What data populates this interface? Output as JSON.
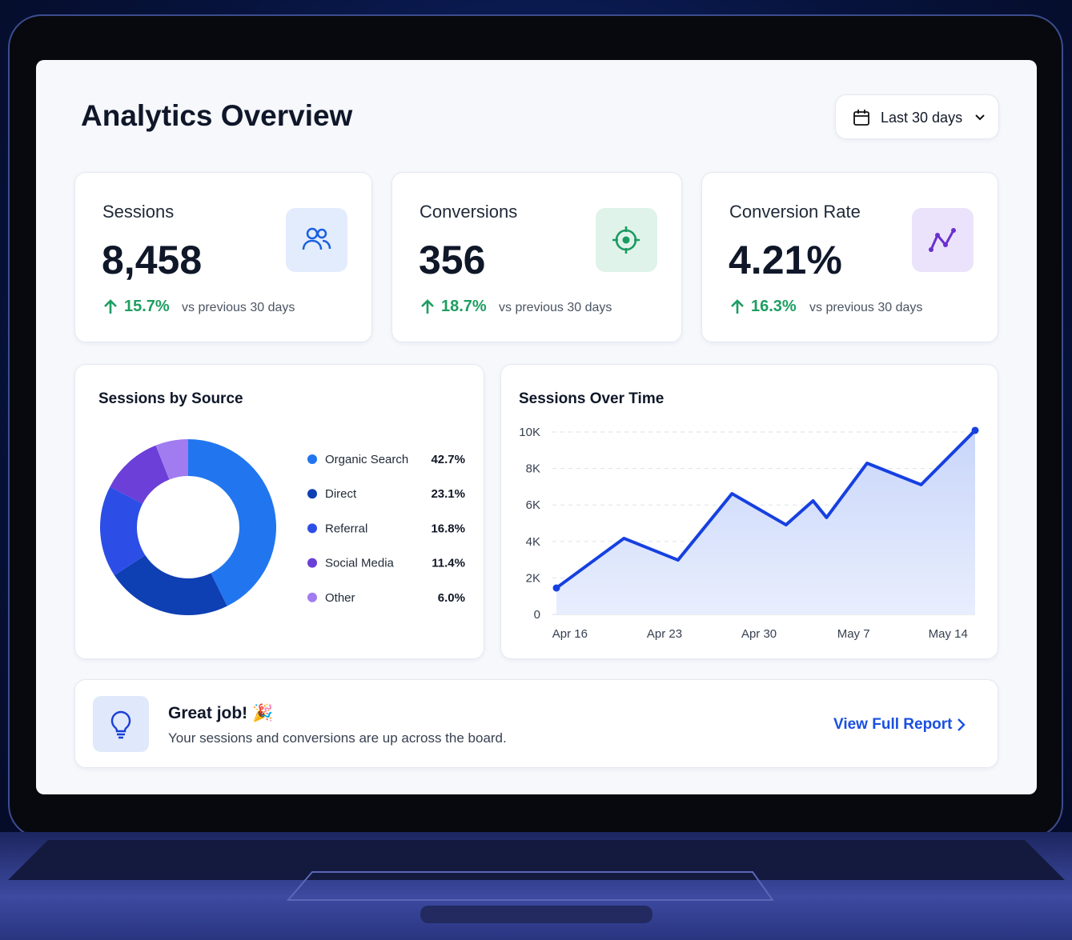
{
  "header": {
    "title": "Analytics Overview",
    "date_range": "Last 30 days"
  },
  "kpis": [
    {
      "label": "Sessions",
      "value": "8,458",
      "change": "15.7%",
      "note": "vs previous 30 days"
    },
    {
      "label": "Conversions",
      "value": "356",
      "change": "18.7%",
      "note": "vs previous 30 days"
    },
    {
      "label": "Conversion Rate",
      "value": "4.21%",
      "change": "16.3%",
      "note": "vs previous 30 days"
    }
  ],
  "chart_data": [
    {
      "type": "donut",
      "title": "Sessions by Source",
      "categories": [
        "Organic Search",
        "Direct",
        "Referral",
        "Social Media",
        "Other"
      ],
      "values": [
        42.7,
        23.1,
        16.8,
        11.4,
        6.0
      ],
      "value_labels": [
        "42.7%",
        "23.1%",
        "16.8%",
        "11.4%",
        "6.0%"
      ],
      "colors": [
        "#2176f0",
        "#0e3fb3",
        "#2c4ee6",
        "#6b3fd8",
        "#a07cf0"
      ]
    },
    {
      "type": "line",
      "title": "Sessions Over Time",
      "x": [
        "Apr 15",
        "Apr 20",
        "Apr 24",
        "Apr 28",
        "May 2",
        "May 4",
        "May 5",
        "May 8",
        "May 12",
        "May 16"
      ],
      "values": [
        1450,
        4170,
        2980,
        6620,
        4910,
        6230,
        5310,
        8290,
        7110,
        10090
      ],
      "color": "#1640e0",
      "xlim": [
        "Apr 15",
        "May 16"
      ],
      "xticks": [
        "Apr 16",
        "Apr 23",
        "Apr 30",
        "May 7",
        "May 14"
      ],
      "ylim": [
        0,
        10000
      ],
      "yticks": [
        {
          "value": 0,
          "label": "0"
        },
        {
          "value": 2000,
          "label": "2K"
        },
        {
          "value": 4000,
          "label": "4K"
        },
        {
          "value": 6000,
          "label": "6K"
        },
        {
          "value": 8000,
          "label": "8K"
        },
        {
          "value": 10000,
          "label": "10K"
        }
      ],
      "grid": true
    }
  ],
  "banner": {
    "title": "Great job! 🎉",
    "message": "Your sessions and conversions are up across the board.",
    "link": "View Full Report"
  }
}
